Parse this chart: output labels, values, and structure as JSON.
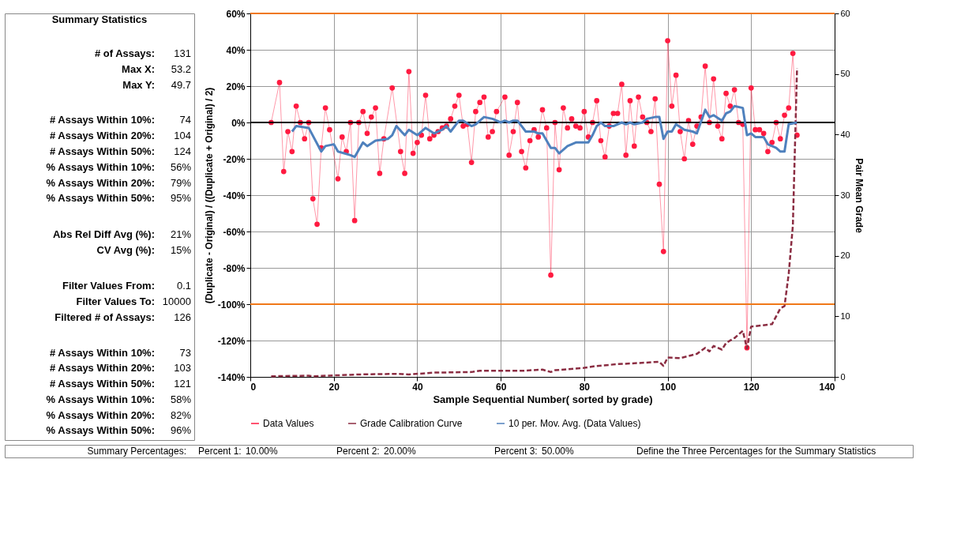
{
  "chart_data": {
    "type": "line",
    "xlabel": "Sample  Sequential Number( sorted by grade)",
    "ylabel": "(Duplicate - Original) / ((Duplicate + Original) / 2)",
    "y2label": "Pair Mean Grade",
    "xlim": [
      0,
      140
    ],
    "xticks": [
      0,
      20,
      40,
      60,
      80,
      100,
      120,
      140
    ],
    "ylim": [
      -140,
      60
    ],
    "yticks": [
      {
        "value": -140,
        "label": "-140%"
      },
      {
        "value": -120,
        "label": "-120%"
      },
      {
        "value": -100,
        "label": "-100%"
      },
      {
        "value": -80,
        "label": "-80%"
      },
      {
        "value": -60,
        "label": "-60%"
      },
      {
        "value": -40,
        "label": "-40%"
      },
      {
        "value": -20,
        "label": "-20%"
      },
      {
        "value": 0,
        "label": "0%"
      },
      {
        "value": 20,
        "label": "20%"
      },
      {
        "value": 40,
        "label": "40%"
      },
      {
        "value": 60,
        "label": "60%"
      }
    ],
    "y2lim": [
      0,
      60
    ],
    "y2ticks": [
      0,
      10,
      20,
      30,
      40,
      50,
      60
    ],
    "grid": true,
    "legend": "bottom",
    "ref_lines": [
      {
        "axis": "y",
        "value": 60,
        "color": "#f07818"
      },
      {
        "axis": "y",
        "value": -100,
        "color": "#f07818"
      },
      {
        "axis": "y",
        "value": 0,
        "color": "#000000"
      }
    ],
    "series": [
      {
        "name": "Data Values",
        "color": "#ff1a40",
        "marker": "circle",
        "x": [
          5,
          7,
          8,
          9,
          10,
          11,
          12,
          13,
          14,
          15,
          16,
          17,
          18,
          19,
          21,
          22,
          23,
          24,
          25,
          26,
          27,
          28,
          29,
          30,
          31,
          32,
          34,
          36,
          37,
          38,
          39,
          40,
          41,
          42,
          43,
          44,
          45,
          46,
          47,
          48,
          49,
          50,
          51,
          52,
          53,
          54,
          55,
          56,
          57,
          58,
          59,
          61,
          62,
          63,
          64,
          65,
          66,
          67,
          68,
          69,
          70,
          71,
          72,
          73,
          74,
          75,
          76,
          77,
          78,
          79,
          80,
          81,
          82,
          83,
          84,
          85,
          86,
          87,
          88,
          89,
          90,
          91,
          92,
          93,
          94,
          95,
          96,
          97,
          98,
          99,
          100,
          101,
          102,
          103,
          104,
          105,
          106,
          107,
          108,
          109,
          110,
          111,
          112,
          113,
          114,
          115,
          116,
          117,
          118,
          119,
          120,
          121,
          122,
          123,
          124,
          125,
          126,
          127,
          128,
          129,
          130,
          131
        ],
        "values": [
          0,
          22,
          -27,
          -5,
          -16,
          9,
          0,
          -9,
          0,
          -42,
          -56,
          -14,
          8,
          -4,
          -31,
          -8,
          -16,
          0,
          -54,
          0,
          6,
          -6,
          3,
          8,
          -28,
          -9,
          19,
          -16,
          -28,
          28,
          -17,
          -11,
          -7,
          15,
          -9,
          -7,
          -5,
          -3,
          -2,
          2,
          9,
          15,
          -2,
          -1,
          -22,
          6,
          11,
          14,
          -8,
          -5,
          6,
          14,
          -18,
          -5,
          11,
          -16,
          -25,
          -10,
          -4,
          -8,
          7,
          -3,
          -84,
          0,
          -26,
          8,
          -3,
          2,
          -2,
          -3,
          6,
          -8,
          0,
          12,
          -10,
          -19,
          -2,
          5,
          5,
          21,
          -18,
          12,
          -13,
          14,
          3,
          0,
          -5,
          13,
          -34,
          -71,
          45,
          9,
          26,
          -5,
          -20,
          1,
          -12,
          -2,
          3,
          31,
          0,
          24,
          -2,
          -9,
          16,
          9,
          18,
          0,
          -1,
          -124,
          19,
          -4,
          -4,
          -6,
          -16,
          -11,
          0,
          -9,
          4,
          8,
          38,
          -7
        ]
      },
      {
        "name": "Grade Calibration Curve",
        "color": "#8b2d42",
        "line_style": "dashed",
        "axis": "y2",
        "x": [
          5,
          14,
          15,
          26,
          35,
          38,
          44,
          53,
          55,
          65,
          70,
          72,
          73,
          80,
          83,
          88,
          96,
          98,
          99,
          100,
          103,
          107,
          109,
          110,
          111,
          113,
          114,
          116,
          118,
          119,
          120,
          125,
          127,
          128,
          129,
          130,
          131
        ],
        "values": [
          0.1,
          0.2,
          0.1,
          0.4,
          0.5,
          0.4,
          0.7,
          0.8,
          1.0,
          1.0,
          1.2,
          0.8,
          1.1,
          1.5,
          1.8,
          2.1,
          2.4,
          2.5,
          1.8,
          3.2,
          3.1,
          3.8,
          4.8,
          4.2,
          5.1,
          4.5,
          5.6,
          6.4,
          7.6,
          4.7,
          8.3,
          8.7,
          11.3,
          11.7,
          17,
          25,
          51
        ]
      },
      {
        "name": "10 per. Mov. Avg. (Data Values)",
        "color": "#4f81bd",
        "x": [
          10,
          11,
          14,
          17,
          18,
          20,
          21,
          24,
          25,
          27,
          28,
          30,
          33,
          34,
          35,
          37,
          38,
          40,
          42,
          44,
          46,
          47,
          48,
          50,
          51,
          53,
          54,
          56,
          58,
          60,
          61,
          62,
          63,
          64,
          66,
          68,
          69,
          70,
          72,
          73,
          74,
          76,
          78,
          80,
          81,
          82,
          83,
          84,
          85,
          87,
          89,
          90,
          91,
          92,
          94,
          95,
          97,
          98,
          99,
          100,
          101,
          102,
          104,
          106,
          107,
          109,
          110,
          111,
          113,
          114,
          115,
          116,
          118,
          119,
          120,
          121,
          123,
          124,
          126,
          127,
          128,
          129,
          131
        ],
        "values": [
          -5,
          -2,
          -3,
          -16,
          -13,
          -12,
          -16,
          -18,
          -19,
          -11,
          -13,
          -10,
          -9,
          -7,
          -2,
          -7,
          -4,
          -7,
          -3,
          -6,
          -4,
          -2,
          -5,
          1,
          1,
          -2,
          -1,
          3,
          2,
          0,
          1,
          0,
          1,
          1,
          -5,
          -5,
          -6,
          -6,
          -14,
          -14,
          -17,
          -13,
          -11,
          -11,
          -11,
          -7,
          -2,
          0,
          -2,
          -2,
          0,
          -1,
          0,
          -1,
          0,
          2,
          3,
          3,
          -9,
          -5,
          -5,
          -1,
          -4,
          -5,
          -6,
          7,
          3,
          4,
          1,
          5,
          6,
          9,
          8,
          -7,
          -6,
          -8,
          -8,
          -12,
          -14,
          -16,
          -16,
          -1,
          0
        ]
      }
    ],
    "annotations": [
      "Summary Statistics",
      "# of Assays:",
      "131",
      "Max X:",
      "53.2",
      "Max Y:",
      "49.7",
      "# Assays Within 10%:",
      "74",
      "# Assays Within 20%:",
      "104",
      "# Assays Within 50%:",
      "124",
      "% Assays Within 10%:",
      "56%",
      "% Assays Within 20%:",
      "79%",
      "% Assays Within 50%:",
      "95%",
      "Abs Rel Diff Avg (%):",
      "21%",
      "CV Avg (%):",
      "15%",
      "Filter Values From:",
      "0.1",
      "Filter Values To:",
      "10000",
      "Filtered # of Assays:",
      "126",
      "# Assays Within 10%:",
      "73",
      "# Assays Within 20%:",
      "103",
      "# Assays Within 50%:",
      "121",
      "% Assays Within 10%:",
      "58%",
      "% Assays Within 20%:",
      "82%",
      "% Assays Within 50%:",
      "96%",
      "Summary Percentages:",
      "Percent 1:",
      "10.00%",
      "Percent 2:",
      "20.00%",
      "Percent 3:",
      "50.00%",
      "Define the Three Percentages for the Summary Statistics"
    ]
  }
}
